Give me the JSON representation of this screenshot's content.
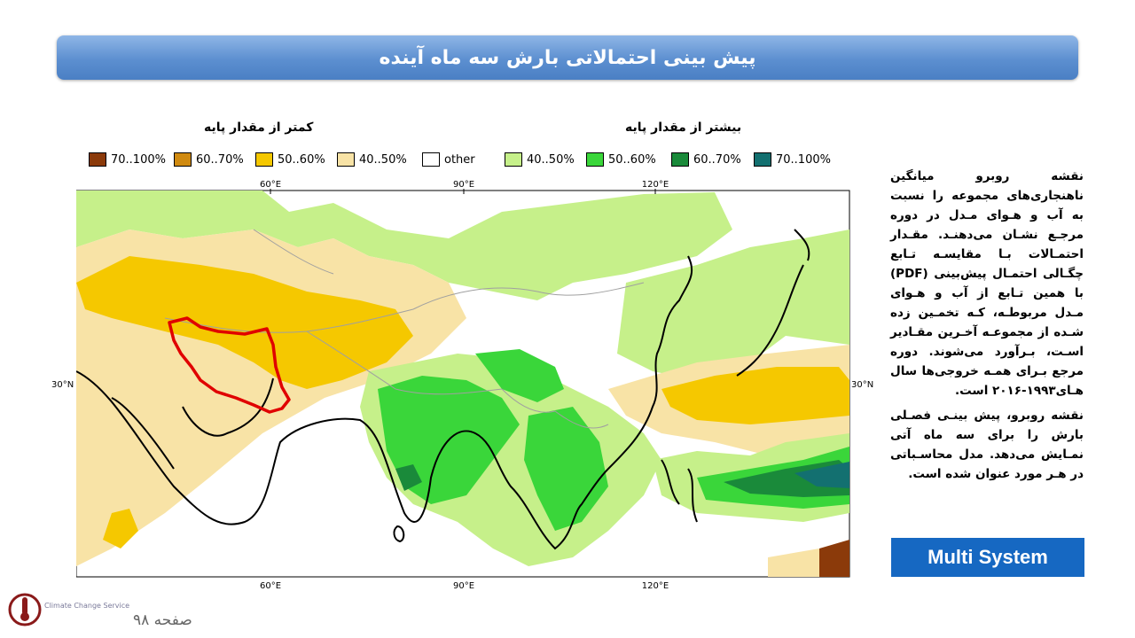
{
  "header": {
    "title": "پیش بینی احتمالاتی بارش سه ماه آینده"
  },
  "legend": {
    "below_label": "کمتر از مقدار پایه",
    "above_label": "بیشتر از مقدار پایه",
    "items": [
      {
        "label": "70..100%",
        "color": "#8b3a0a"
      },
      {
        "label": "60..70%",
        "color": "#d08a10"
      },
      {
        "label": "50..60%",
        "color": "#f5c800"
      },
      {
        "label": "40..50%",
        "color": "#f8e3a6"
      },
      {
        "label": "other",
        "color": "#ffffff"
      },
      {
        "label": "40..50%",
        "color": "#c6f08a"
      },
      {
        "label": "50..60%",
        "color": "#3ad63a"
      },
      {
        "label": "60..70%",
        "color": "#1a8a3a"
      },
      {
        "label": "70..100%",
        "color": "#137070"
      }
    ]
  },
  "map": {
    "lon_labels": [
      "60°E",
      "90°E",
      "120°E"
    ],
    "lat_labels": [
      "30°N",
      "30°N"
    ],
    "highlight_color": "#e00000"
  },
  "description": {
    "p1": "نقشه روبرو میانگین ناهنجاری‌های مجموعه را نسبت به آب و هـوای مـدل در دوره مرجـع نشـان می‌دهنـد. مقـدار احتمـالات بـا مقایسـه تـابع چگـالی احتمـال پیش‌بینی (PDF) با همین تـابع از آب و هـوای مـدل مربوطـه، کـه تخمـین زده شـده از مجموعـه آخـرین مقـادیر اسـت، بـرآورد می‌شوند. دوره مرجع بـرای همـه خروجی‌ها سال هـای۱۹۹۳-۲۰۱۶ است.",
    "p2": "نقشه روبرو، پیش بینـی فصـلی بارش را برای سه ماه آتی نمـایش می‌دهد. مدل محاسـباتی در هـر مورد عنوان شده است."
  },
  "badge": {
    "label": "Multi System"
  },
  "footer": {
    "page": "صفحه ۹۸",
    "logo_text": "Climate Change Service"
  }
}
